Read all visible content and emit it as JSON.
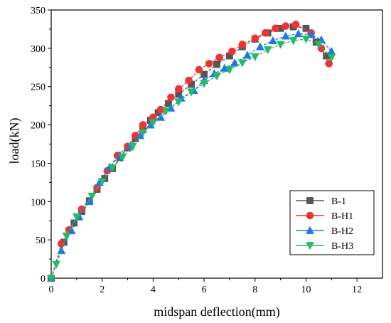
{
  "chart_data": {
    "type": "line",
    "title": "",
    "xlabel": "midspan deflection(mm)",
    "ylabel": "load(kN)",
    "xlim": [
      0,
      13
    ],
    "ylim": [
      0,
      350
    ],
    "xticks": [
      0,
      2,
      4,
      6,
      8,
      10,
      12
    ],
    "yticks": [
      0,
      50,
      100,
      150,
      200,
      250,
      300,
      350
    ],
    "grid": false,
    "legend_position": "bottom-right",
    "series": [
      {
        "name": "B-1",
        "color": "#555555",
        "marker": "square",
        "x": [
          0,
          0.5,
          0.9,
          1.2,
          1.5,
          1.8,
          2.1,
          2.4,
          2.7,
          3.0,
          3.3,
          3.6,
          3.9,
          4.2,
          4.6,
          5.0,
          5.5,
          6.0,
          6.5,
          7.0,
          7.5,
          8.0,
          8.5,
          9.0,
          9.5,
          10.0,
          10.4,
          10.8
        ],
        "y": [
          0,
          47,
          72,
          87,
          101,
          116,
          130,
          143,
          157,
          170,
          182,
          194,
          206,
          216,
          228,
          240,
          253,
          266,
          279,
          290,
          302,
          312,
          320,
          326,
          328,
          326,
          308,
          290
        ]
      },
      {
        "name": "B-H1",
        "color": "#ee3333",
        "marker": "circle",
        "x": [
          0,
          0.4,
          0.7,
          1.2,
          1.8,
          2.2,
          2.6,
          3.0,
          3.3,
          3.6,
          4.0,
          4.3,
          4.7,
          5.0,
          5.4,
          5.8,
          6.2,
          6.6,
          7.1,
          7.5,
          8.0,
          8.4,
          8.8,
          9.2,
          9.6,
          10.2,
          10.6,
          10.9
        ],
        "y": [
          0,
          45,
          63,
          90,
          118,
          140,
          160,
          172,
          186,
          200,
          210,
          220,
          236,
          247,
          258,
          272,
          280,
          288,
          296,
          305,
          313,
          320,
          326,
          329,
          331,
          320,
          300,
          280
        ]
      },
      {
        "name": "B-H2",
        "color": "#1f77e8",
        "marker": "triangle-up",
        "x": [
          0,
          0.4,
          0.8,
          1.1,
          1.5,
          1.9,
          2.3,
          2.7,
          3.1,
          3.5,
          3.9,
          4.3,
          4.7,
          5.1,
          5.6,
          6.0,
          6.4,
          6.8,
          7.2,
          7.7,
          8.2,
          8.7,
          9.2,
          9.7,
          10.2,
          10.6,
          11.0
        ],
        "y": [
          0,
          36,
          62,
          80,
          100,
          125,
          145,
          160,
          172,
          186,
          200,
          210,
          222,
          235,
          245,
          258,
          267,
          274,
          281,
          291,
          302,
          310,
          316,
          319,
          318,
          311,
          296
        ]
      },
      {
        "name": "B-H3",
        "color": "#22bb66",
        "marker": "triangle-down",
        "x": [
          0,
          0.2,
          0.6,
          1.0,
          1.6,
          2.0,
          2.4,
          2.8,
          3.2,
          3.6,
          4.0,
          4.5,
          5.0,
          5.5,
          6.0,
          6.5,
          7.0,
          7.5,
          8.0,
          8.5,
          9.0,
          9.5,
          10.0,
          10.5,
          11.0
        ],
        "y": [
          0,
          18,
          55,
          80,
          107,
          126,
          144,
          158,
          172,
          190,
          203,
          218,
          230,
          243,
          254,
          264,
          272,
          281,
          289,
          298,
          305,
          310,
          312,
          305,
          288
        ]
      }
    ]
  }
}
